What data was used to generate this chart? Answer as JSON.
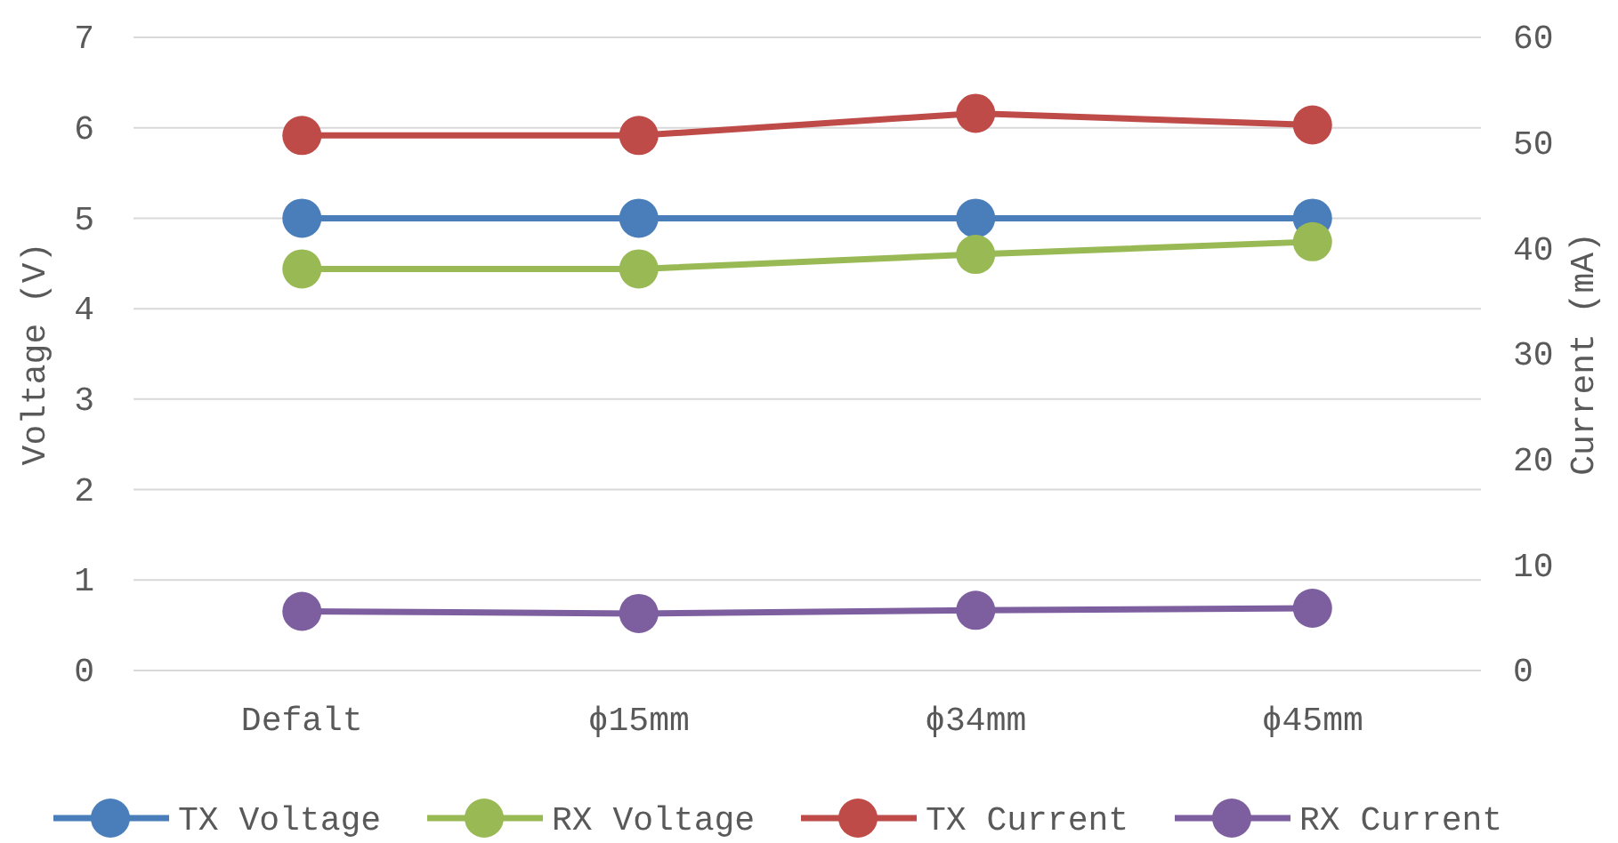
{
  "chart_data": {
    "type": "line",
    "categories": [
      "Defalt",
      "ϕ15mm",
      "ϕ34mm",
      "ϕ45mm"
    ],
    "ylabel": "Voltage (V)",
    "y2label": "Current (mA)",
    "ylim": [
      0,
      7
    ],
    "yticks": [
      0,
      1,
      2,
      3,
      4,
      5,
      6,
      7
    ],
    "y2lim": [
      0,
      60
    ],
    "y2ticks": [
      0,
      10,
      20,
      30,
      40,
      50,
      60
    ],
    "grid": "y",
    "legend": "bottom",
    "marker": "circle",
    "line_style": "solid",
    "series": [
      {
        "name": "TX Voltage",
        "color": "#4a7ebb",
        "values": [
          5.0,
          5.0,
          5.0,
          5.0
        ]
      },
      {
        "name": "RX Voltage",
        "color": "#98b954",
        "values": [
          4.44,
          4.44,
          4.6,
          4.74
        ]
      },
      {
        "name": "TX Current",
        "color": "#be4b48",
        "axis": "y2",
        "values": [
          50.7,
          50.7,
          52.8,
          51.7
        ]
      },
      {
        "name": "RX Current",
        "color": "#7d5fa0",
        "axis": "y2",
        "values": [
          5.6,
          5.4,
          5.7,
          5.9
        ]
      }
    ]
  }
}
